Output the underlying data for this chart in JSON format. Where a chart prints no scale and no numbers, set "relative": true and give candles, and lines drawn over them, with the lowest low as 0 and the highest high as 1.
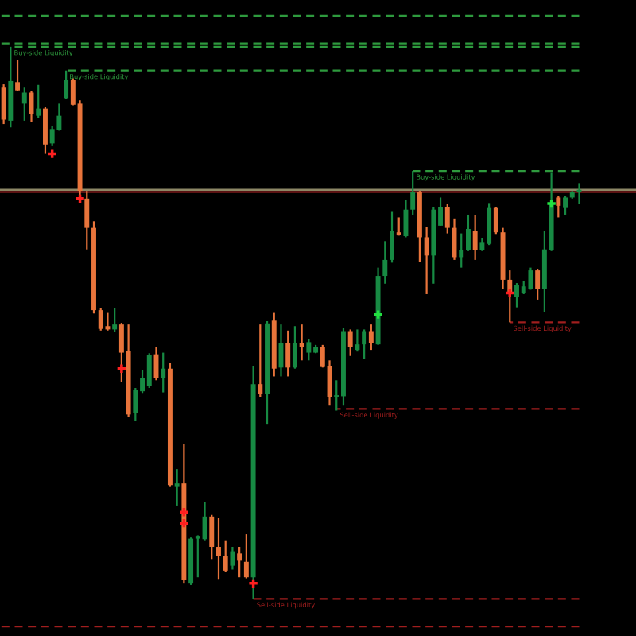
{
  "chart_data": {
    "type": "candlestick",
    "relative": true,
    "tick_labels": false,
    "categories": [
      null,
      null,
      null,
      null,
      null,
      null,
      null,
      null,
      null,
      null,
      null,
      null,
      null,
      null,
      null,
      null,
      null,
      null,
      null,
      null,
      null,
      null,
      null,
      null,
      null,
      null,
      null,
      null,
      null,
      null,
      null,
      null,
      null,
      null,
      null,
      null,
      null,
      null,
      null,
      null,
      null,
      null,
      null,
      null,
      null,
      null,
      null,
      null,
      null,
      null,
      null,
      null,
      null,
      null,
      null,
      null,
      null,
      null,
      null,
      null,
      null,
      null,
      null,
      null,
      null,
      null,
      null,
      null,
      null,
      null,
      null,
      null,
      null,
      null,
      null,
      null,
      null,
      null,
      null,
      null,
      null,
      null,
      null,
      null
    ],
    "ohlc": [
      [
        0.926,
        0.932,
        0.86,
        0.868
      ],
      [
        0.866,
        1.0,
        0.854,
        0.938
      ],
      [
        0.936,
        0.976,
        0.92,
        0.921
      ],
      [
        0.897,
        0.926,
        0.866,
        0.917
      ],
      [
        0.917,
        0.92,
        0.864,
        0.878
      ],
      [
        0.875,
        0.931,
        0.871,
        0.888
      ],
      [
        0.888,
        0.891,
        0.806,
        0.823
      ],
      [
        0.825,
        0.857,
        0.82,
        0.851
      ],
      [
        0.849,
        0.897,
        0.848,
        0.875
      ],
      [
        0.907,
        0.957,
        0.906,
        0.94
      ],
      [
        0.94,
        0.943,
        0.894,
        0.895
      ],
      [
        0.897,
        0.903,
        0.725,
        0.739
      ],
      [
        0.725,
        0.739,
        0.633,
        0.672
      ],
      [
        0.672,
        0.684,
        0.517,
        0.523
      ],
      [
        0.523,
        0.526,
        0.486,
        0.489
      ],
      [
        0.494,
        0.518,
        0.486,
        0.488
      ],
      [
        0.488,
        0.526,
        0.483,
        0.497
      ],
      [
        0.497,
        0.5,
        0.393,
        0.446
      ],
      [
        0.449,
        0.497,
        0.33,
        0.334
      ],
      [
        0.336,
        0.382,
        0.322,
        0.379
      ],
      [
        0.376,
        0.414,
        0.373,
        0.4
      ],
      [
        0.386,
        0.445,
        0.382,
        0.442
      ],
      [
        0.443,
        0.456,
        0.396,
        0.4
      ],
      [
        0.4,
        0.446,
        0.374,
        0.417
      ],
      [
        0.417,
        0.428,
        0.204,
        0.206
      ],
      [
        0.204,
        0.235,
        0.169,
        0.209
      ],
      [
        0.209,
        0.28,
        0.029,
        0.034
      ],
      [
        0.029,
        0.111,
        0.025,
        0.109
      ],
      [
        0.109,
        0.115,
        0.039,
        0.114
      ],
      [
        0.108,
        0.175,
        0.106,
        0.149
      ],
      [
        0.149,
        0.152,
        0.072,
        0.094
      ],
      [
        0.094,
        0.146,
        0.036,
        0.077
      ],
      [
        0.077,
        0.106,
        0.048,
        0.051
      ],
      [
        0.06,
        0.094,
        0.053,
        0.086
      ],
      [
        0.082,
        0.094,
        0.039,
        0.069
      ],
      [
        0.067,
        0.117,
        0.037,
        0.039
      ],
      [
        0.039,
        0.422,
        0.0,
        0.389
      ],
      [
        0.389,
        0.497,
        0.365,
        0.371
      ],
      [
        0.371,
        0.503,
        0.317,
        0.499
      ],
      [
        0.504,
        0.518,
        0.403,
        0.417
      ],
      [
        0.419,
        0.497,
        0.403,
        0.463
      ],
      [
        0.463,
        0.486,
        0.403,
        0.419
      ],
      [
        0.419,
        0.494,
        0.417,
        0.463
      ],
      [
        0.463,
        0.497,
        0.432,
        0.456
      ],
      [
        0.446,
        0.471,
        0.432,
        0.465
      ],
      [
        0.446,
        0.46,
        0.445,
        0.456
      ],
      [
        0.456,
        0.46,
        0.419,
        0.42
      ],
      [
        0.422,
        0.432,
        0.35,
        0.365
      ],
      [
        0.365,
        0.396,
        0.341,
        0.369
      ],
      [
        0.367,
        0.491,
        0.35,
        0.485
      ],
      [
        0.485,
        0.488,
        0.44,
        0.456
      ],
      [
        0.451,
        0.488,
        0.448,
        0.461
      ],
      [
        0.461,
        0.488,
        0.434,
        0.485
      ],
      [
        0.485,
        0.497,
        0.451,
        0.463
      ],
      [
        0.461,
        0.6,
        0.46,
        0.585
      ],
      [
        0.585,
        0.648,
        0.571,
        0.614
      ],
      [
        0.614,
        0.701,
        0.609,
        0.667
      ],
      [
        0.664,
        0.691,
        0.658,
        0.66
      ],
      [
        0.657,
        0.722,
        0.655,
        0.705
      ],
      [
        0.705,
        0.775,
        0.696,
        0.737
      ],
      [
        0.737,
        0.739,
        0.611,
        0.655
      ],
      [
        0.655,
        0.674,
        0.552,
        0.622
      ],
      [
        0.622,
        0.71,
        0.571,
        0.705
      ],
      [
        0.676,
        0.727,
        0.676,
        0.71
      ],
      [
        0.71,
        0.715,
        0.662,
        0.672
      ],
      [
        0.672,
        0.689,
        0.614,
        0.619
      ],
      [
        0.619,
        0.662,
        0.6,
        0.632
      ],
      [
        0.632,
        0.696,
        0.63,
        0.67
      ],
      [
        0.667,
        0.696,
        0.614,
        0.632
      ],
      [
        0.632,
        0.653,
        0.63,
        0.645
      ],
      [
        0.643,
        0.717,
        0.641,
        0.708
      ],
      [
        0.708,
        0.71,
        0.661,
        0.664
      ],
      [
        0.664,
        0.672,
        0.561,
        0.578
      ],
      [
        0.578,
        0.595,
        0.501,
        0.552
      ],
      [
        0.547,
        0.572,
        0.528,
        0.568
      ],
      [
        0.554,
        0.576,
        0.552,
        0.566
      ],
      [
        0.561,
        0.6,
        0.56,
        0.595
      ],
      [
        0.595,
        0.598,
        0.542,
        0.561
      ],
      [
        0.561,
        0.667,
        0.52,
        0.633
      ],
      [
        0.632,
        0.773,
        0.63,
        0.716
      ],
      [
        0.727,
        0.73,
        0.691,
        0.712
      ],
      [
        0.708,
        0.73,
        0.696,
        0.727
      ],
      [
        0.727,
        0.739,
        0.725,
        0.737
      ],
      [
        0.737,
        0.753,
        0.715,
        0.741
      ]
    ],
    "colors": [
      "#e8743b",
      "#178a43",
      "#e8743b",
      "#178a43",
      "#e8743b",
      "#178a43",
      "#e8743b",
      "#178a43",
      "#178a43",
      "#178a43",
      "#e8743b",
      "#e8743b",
      "#e8743b",
      "#e8743b",
      "#e8743b",
      "#e8743b",
      "#178a43",
      "#e8743b",
      "#e8743b",
      "#178a43",
      "#178a43",
      "#178a43",
      "#e8743b",
      "#178a43",
      "#e8743b",
      "#178a43",
      "#e8743b",
      "#178a43",
      "#178a43",
      "#178a43",
      "#e8743b",
      "#e8743b",
      "#e8743b",
      "#178a43",
      "#e8743b",
      "#e8743b",
      "#178a43",
      "#e8743b",
      "#178a43",
      "#e8743b",
      "#178a43",
      "#e8743b",
      "#178a43",
      "#e8743b",
      "#178a43",
      "#178a43",
      "#e8743b",
      "#e8743b",
      "#178a43",
      "#178a43",
      "#e8743b",
      "#178a43",
      "#178a43",
      "#e8743b",
      "#178a43",
      "#178a43",
      "#178a43",
      "#e8743b",
      "#178a43",
      "#178a43",
      "#e8743b",
      "#e8743b",
      "#178a43",
      "#178a43",
      "#e8743b",
      "#e8743b",
      "#178a43",
      "#178a43",
      "#e8743b",
      "#178a43",
      "#178a43",
      "#e8743b",
      "#e8743b",
      "#e8743b",
      "#178a43",
      "#178a43",
      "#178a43",
      "#e8743b",
      "#178a43",
      "#178a43",
      "#e8743b",
      "#178a43",
      "#178a43",
      "#178a43"
    ],
    "series": [
      {
        "type": "line",
        "name": "Buy-side Liquidity",
        "color": "#2e9a3e",
        "line_style": "dashed",
        "values": [
          null,
          1.0,
          1.0,
          1.0,
          1.0,
          1.0,
          1.0,
          1.0,
          1.0,
          1.0,
          1.0,
          1.0,
          1.0,
          1.0,
          1.0,
          1.0,
          1.0,
          1.0,
          1.0,
          1.0,
          1.0,
          1.0,
          1.0,
          1.0,
          1.0,
          1.0,
          1.0,
          1.0,
          1.0,
          1.0,
          1.0,
          1.0,
          1.0,
          1.0,
          1.0,
          1.0,
          1.0,
          1.0,
          1.0,
          1.0,
          1.0,
          1.0,
          1.0,
          1.0,
          1.0,
          1.0,
          1.0,
          1.0,
          1.0,
          1.0,
          1.0,
          1.0,
          1.0,
          1.0,
          1.0,
          1.0,
          1.0,
          1.0,
          1.0,
          1.0,
          1.0,
          1.0,
          1.0,
          1.0,
          1.0,
          1.0,
          1.0,
          1.0,
          1.0,
          1.0,
          1.0,
          1.0,
          1.0,
          1.0,
          1.0,
          1.0,
          1.0,
          1.0,
          1.0,
          1.0,
          1.0,
          1.0,
          1.0,
          1.0
        ]
      },
      {
        "type": "line",
        "name": "Buy-side Liquidity",
        "color": "#2e9a3e",
        "line_style": "dashed",
        "values": [
          null,
          null,
          null,
          null,
          null,
          null,
          null,
          null,
          null,
          0.957,
          0.957,
          0.957,
          0.957,
          0.957,
          0.957,
          0.957,
          0.957,
          0.957,
          0.957,
          0.957,
          0.957,
          0.957,
          0.957,
          0.957,
          0.957,
          0.957,
          0.957,
          0.957,
          0.957,
          0.957,
          0.957,
          0.957,
          0.957,
          0.957,
          0.957,
          0.957,
          0.957,
          0.957,
          0.957,
          0.957,
          0.957,
          0.957,
          0.957,
          0.957,
          0.957,
          0.957,
          0.957,
          0.957,
          0.957,
          0.957,
          0.957,
          0.957,
          0.957,
          0.957,
          0.957,
          0.957,
          0.957,
          0.957,
          0.957,
          0.957,
          0.957,
          0.957,
          0.957,
          0.957,
          0.957,
          0.957,
          0.957,
          0.957,
          0.957,
          0.957,
          0.957,
          0.957,
          0.957,
          0.957,
          0.957,
          0.957,
          0.957,
          0.957,
          0.957,
          0.957,
          0.957,
          0.957,
          0.957,
          0.957
        ]
      },
      {
        "type": "line",
        "name": "Buy-side Liquidity",
        "color": "#2e9a3e",
        "line_style": "dashed",
        "values": [
          null,
          null,
          null,
          null,
          null,
          null,
          null,
          null,
          null,
          null,
          null,
          null,
          null,
          null,
          null,
          null,
          null,
          null,
          null,
          null,
          null,
          null,
          null,
          null,
          null,
          null,
          null,
          null,
          null,
          null,
          null,
          null,
          null,
          null,
          null,
          null,
          null,
          null,
          null,
          null,
          null,
          null,
          null,
          null,
          null,
          null,
          null,
          null,
          null,
          null,
          null,
          null,
          null,
          null,
          null,
          null,
          null,
          null,
          null,
          0.775,
          0.775,
          0.775,
          0.775,
          0.775,
          0.775,
          0.775,
          0.775,
          0.775,
          0.775,
          0.775,
          0.775,
          0.775,
          0.775,
          0.775,
          0.775,
          0.775,
          0.775,
          0.775,
          0.775,
          0.775,
          0.775,
          0.775,
          0.775,
          0.775
        ]
      },
      {
        "type": "line",
        "name": "Sell-side Liquidity",
        "color": "#a01e1e",
        "line_style": "dashed",
        "values": [
          null,
          null,
          null,
          null,
          null,
          null,
          null,
          null,
          null,
          null,
          null,
          null,
          null,
          null,
          null,
          null,
          null,
          null,
          null,
          null,
          null,
          null,
          null,
          null,
          null,
          null,
          null,
          null,
          null,
          null,
          null,
          null,
          null,
          null,
          null,
          null,
          null,
          null,
          null,
          null,
          null,
          null,
          null,
          null,
          null,
          null,
          null,
          null,
          null,
          null,
          null,
          null,
          null,
          null,
          null,
          null,
          null,
          null,
          null,
          null,
          null,
          null,
          null,
          null,
          null,
          null,
          null,
          null,
          null,
          null,
          null,
          null,
          null,
          0.501,
          0.501,
          0.501,
          0.501,
          0.501,
          0.501,
          0.501,
          0.501,
          0.501,
          0.501,
          0.501
        ]
      },
      {
        "type": "line",
        "name": "Sell-side Liquidity",
        "color": "#a01e1e",
        "line_style": "dashed",
        "values": [
          null,
          null,
          null,
          null,
          null,
          null,
          null,
          null,
          null,
          null,
          null,
          null,
          null,
          null,
          null,
          null,
          null,
          null,
          null,
          null,
          null,
          null,
          null,
          null,
          null,
          null,
          null,
          null,
          null,
          null,
          null,
          null,
          null,
          null,
          null,
          null,
          null,
          null,
          null,
          null,
          null,
          null,
          null,
          null,
          null,
          null,
          null,
          null,
          0.344,
          0.344,
          0.344,
          0.344,
          0.344,
          0.344,
          0.344,
          0.344,
          0.344,
          0.344,
          0.344,
          0.344,
          0.344,
          0.344,
          0.344,
          0.344,
          0.344,
          0.344,
          0.344,
          0.344,
          0.344,
          0.344,
          0.344,
          0.344,
          0.344,
          0.344,
          0.344,
          0.344,
          0.344,
          0.344,
          0.344,
          0.344,
          0.344,
          0.344,
          0.344,
          0.344
        ]
      },
      {
        "type": "line",
        "name": "Sell-side Liquidity",
        "color": "#a01e1e",
        "line_style": "dashed",
        "values": [
          null,
          null,
          null,
          null,
          null,
          null,
          null,
          null,
          null,
          null,
          null,
          null,
          null,
          null,
          null,
          null,
          null,
          null,
          null,
          null,
          null,
          null,
          null,
          null,
          null,
          null,
          null,
          null,
          null,
          null,
          null,
          null,
          null,
          null,
          null,
          null,
          0.0,
          0.0,
          0.0,
          0.0,
          0.0,
          0.0,
          0.0,
          0.0,
          0.0,
          0.0,
          0.0,
          0.0,
          0.0,
          0.0,
          0.0,
          0.0,
          0.0,
          0.0,
          0.0,
          0.0,
          0.0,
          0.0,
          0.0,
          0.0,
          0.0,
          0.0,
          0.0,
          0.0,
          0.0,
          0.0,
          0.0,
          0.0,
          0.0,
          0.0,
          0.0,
          0.0,
          0.0,
          0.0,
          0.0,
          0.0,
          0.0,
          0.0,
          0.0,
          0.0,
          0.0,
          0.0,
          0.0,
          0.0
        ]
      },
      {
        "type": "scatter",
        "color": "#ff2020",
        "marker": "cross",
        "values": [
          null,
          null,
          null,
          null,
          null,
          null,
          null,
          0.806,
          null,
          null,
          null,
          0.725,
          null,
          null,
          null,
          null,
          null,
          0.417,
          null,
          null,
          null,
          null,
          null,
          null,
          null,
          null,
          0.157,
          null,
          null,
          null,
          null,
          null,
          null,
          null,
          null,
          null,
          0.028,
          null,
          null,
          null,
          null,
          null,
          null,
          null,
          null,
          null,
          null,
          null,
          null,
          null,
          null,
          null,
          null,
          null,
          null,
          null,
          null,
          null,
          null,
          null,
          null,
          null,
          null,
          null,
          null,
          null,
          null,
          null,
          null,
          null,
          null,
          null,
          null,
          0.554,
          null,
          null,
          null,
          null,
          null,
          null,
          null,
          null,
          null,
          null
        ]
      },
      {
        "type": "scatter",
        "color": "#ff2020",
        "marker": "cross",
        "values": [
          null,
          null,
          null,
          null,
          null,
          null,
          null,
          null,
          null,
          null,
          null,
          null,
          null,
          null,
          null,
          null,
          null,
          null,
          null,
          null,
          null,
          null,
          null,
          null,
          null,
          null,
          0.137,
          null,
          null,
          null,
          null,
          null,
          null,
          null,
          null,
          null,
          null,
          null,
          null,
          null,
          null,
          null,
          null,
          null,
          null,
          null,
          null,
          null,
          null,
          null,
          null,
          null,
          null,
          null,
          null,
          null,
          null,
          null,
          null,
          null,
          null,
          null,
          null,
          null,
          null,
          null,
          null,
          null,
          null,
          null,
          null,
          null,
          null,
          null,
          null,
          null,
          null,
          null,
          null,
          null,
          null,
          null,
          null,
          null
        ]
      },
      {
        "type": "scatter",
        "color": "#22e040",
        "marker": "cross",
        "values": [
          null,
          null,
          null,
          null,
          null,
          null,
          null,
          null,
          null,
          null,
          null,
          null,
          null,
          null,
          null,
          null,
          null,
          null,
          null,
          null,
          null,
          null,
          null,
          null,
          null,
          null,
          null,
          null,
          null,
          null,
          null,
          null,
          null,
          null,
          null,
          null,
          null,
          null,
          null,
          null,
          null,
          null,
          null,
          null,
          null,
          null,
          null,
          null,
          null,
          null,
          null,
          null,
          null,
          null,
          0.515,
          null,
          null,
          null,
          null,
          null,
          null,
          null,
          null,
          null,
          null,
          null,
          null,
          null,
          null,
          null,
          null,
          null,
          null,
          null,
          null,
          null,
          null,
          null,
          null,
          0.716,
          null,
          null,
          null,
          null
        ]
      }
    ],
    "ref_lines": [
      {
        "axis": "y",
        "value": 1.056,
        "color": "#2e9a3e",
        "line_style": "dashed"
      },
      {
        "axis": "y",
        "value": 1.006,
        "color": "#2e9a3e",
        "line_style": "dashed"
      },
      {
        "axis": "y",
        "value": -0.05,
        "color": "#a01e1e",
        "line_style": "dashed"
      },
      {
        "axis": "y",
        "value": 0.741,
        "color": "#8c8766",
        "line_style": "solid"
      },
      {
        "axis": "y",
        "value": 0.737,
        "color": "#7a1a1a",
        "line_style": "solid"
      }
    ]
  }
}
